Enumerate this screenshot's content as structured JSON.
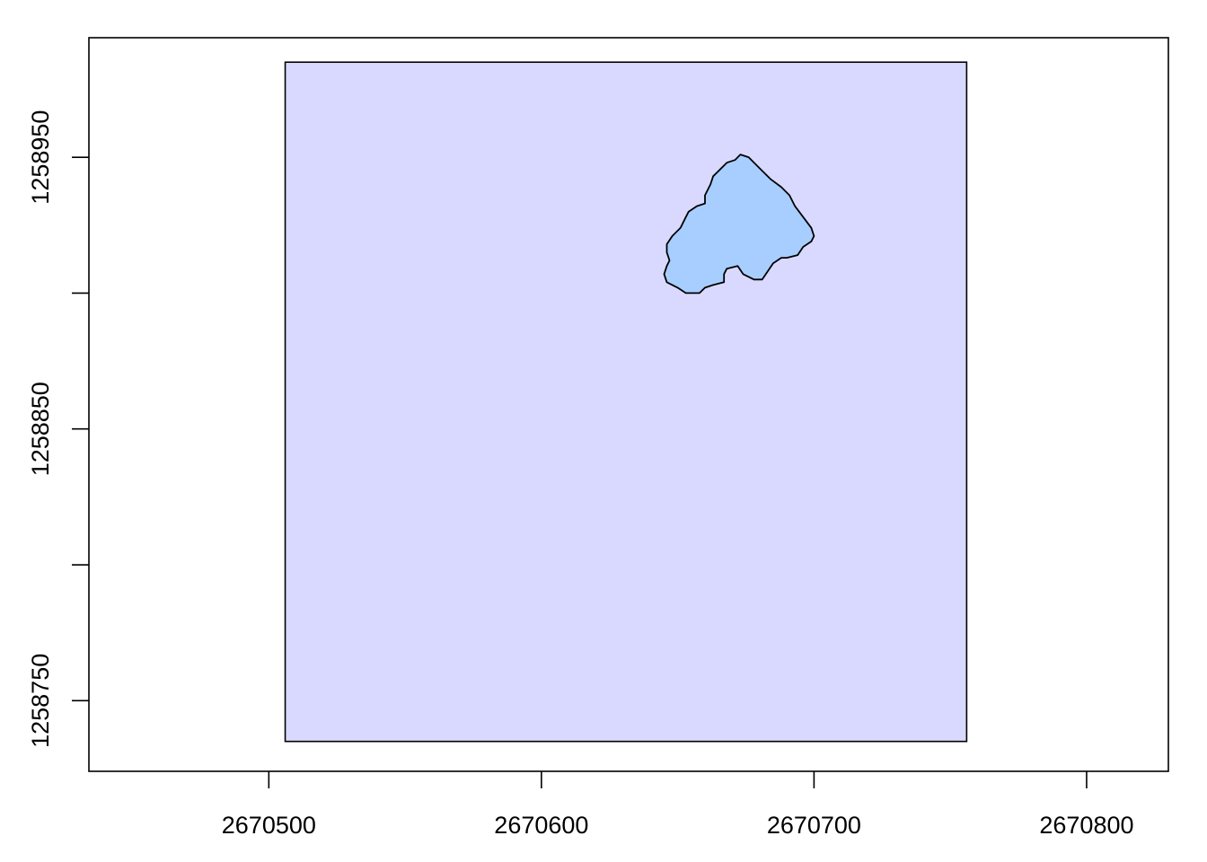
{
  "chart_data": {
    "type": "map",
    "title": "",
    "xlabel": "",
    "ylabel": "",
    "xlim": [
      2670434,
      2670830
    ],
    "ylim": [
      1258724,
      1258994
    ],
    "x_ticks": [
      2670500,
      2670600,
      2670700,
      2670800
    ],
    "x_tick_labels": [
      "2670500",
      "2670600",
      "2670700",
      "2670800"
    ],
    "y_ticks": [
      1258750,
      1258800,
      1258850,
      1258900,
      1258950
    ],
    "y_tick_labels": [
      "1258750",
      "",
      "1258850",
      "",
      "1258950"
    ],
    "grid": false,
    "legend": "none",
    "series": [
      {
        "kind": "rectangle",
        "fill": "#d9d9ff",
        "stroke": "#000000",
        "x_range": [
          2670506,
          2670756
        ],
        "y_range": [
          1258735,
          1258985
        ]
      },
      {
        "kind": "polygon",
        "fill": "#a8ceff",
        "stroke": "#000000",
        "points": [
          [
            2670673,
            1258951
          ],
          [
            2670676,
            1258950
          ],
          [
            2670680,
            1258946
          ],
          [
            2670684,
            1258942
          ],
          [
            2670688,
            1258939
          ],
          [
            2670691,
            1258936
          ],
          [
            2670693,
            1258932
          ],
          [
            2670696,
            1258928
          ],
          [
            2670699,
            1258924
          ],
          [
            2670700,
            1258921
          ],
          [
            2670699,
            1258919
          ],
          [
            2670696,
            1258917
          ],
          [
            2670694,
            1258914
          ],
          [
            2670690,
            1258913
          ],
          [
            2670688,
            1258913
          ],
          [
            2670685,
            1258911
          ],
          [
            2670683,
            1258908
          ],
          [
            2670681,
            1258905
          ],
          [
            2670678,
            1258905
          ],
          [
            2670674,
            1258907
          ],
          [
            2670672,
            1258910
          ],
          [
            2670668,
            1258909
          ],
          [
            2670667,
            1258907
          ],
          [
            2670667,
            1258904
          ],
          [
            2670663,
            1258903
          ],
          [
            2670660,
            1258902
          ],
          [
            2670658,
            1258900
          ],
          [
            2670653,
            1258900
          ],
          [
            2670650,
            1258902
          ],
          [
            2670646,
            1258904
          ],
          [
            2670645,
            1258907
          ],
          [
            2670646,
            1258910
          ],
          [
            2670647,
            1258912
          ],
          [
            2670646,
            1258915
          ],
          [
            2670646,
            1258918
          ],
          [
            2670648,
            1258921
          ],
          [
            2670651,
            1258924
          ],
          [
            2670653,
            1258928
          ],
          [
            2670654,
            1258930
          ],
          [
            2670657,
            1258932
          ],
          [
            2670660,
            1258933
          ],
          [
            2670660,
            1258936
          ],
          [
            2670662,
            1258940
          ],
          [
            2670663,
            1258943
          ],
          [
            2670665,
            1258945
          ],
          [
            2670668,
            1258948
          ],
          [
            2670671,
            1258949
          ]
        ]
      }
    ]
  }
}
